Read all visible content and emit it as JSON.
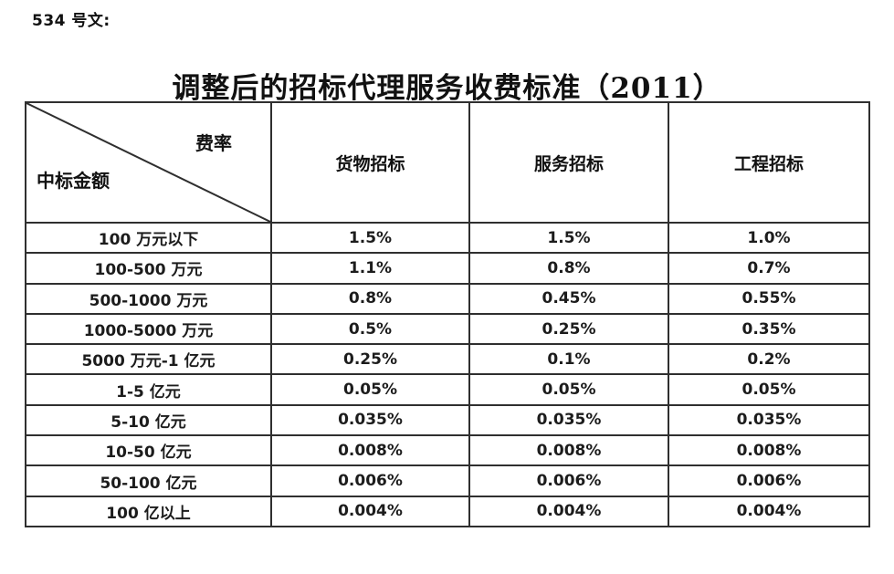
{
  "page": {
    "doc_label": "534 号文:",
    "title": "调整后的招标代理服务收费标准（2011）"
  },
  "colors": {
    "background": "#ffffff",
    "text": "#111111",
    "table_border": "#2f2f2f"
  },
  "table": {
    "corner": {
      "top_right_label": "费率",
      "bottom_left_label": "中标金额"
    },
    "columns": [
      "货物招标",
      "服务招标",
      "工程招标"
    ],
    "rows": [
      {
        "amount": "100 万元以下",
        "values": [
          "1.5%",
          "1.5%",
          "1.0%"
        ]
      },
      {
        "amount": "100-500 万元",
        "values": [
          "1.1%",
          "0.8%",
          "0.7%"
        ]
      },
      {
        "amount": "500-1000 万元",
        "values": [
          "0.8%",
          "0.45%",
          "0.55%"
        ]
      },
      {
        "amount": "1000-5000 万元",
        "values": [
          "0.5%",
          "0.25%",
          "0.35%"
        ]
      },
      {
        "amount": "5000 万元-1 亿元",
        "values": [
          "0.25%",
          "0.1%",
          "0.2%"
        ]
      },
      {
        "amount": "1-5 亿元",
        "values": [
          "0.05%",
          "0.05%",
          "0.05%"
        ]
      },
      {
        "amount": "5-10 亿元",
        "values": [
          "0.035%",
          "0.035%",
          "0.035%"
        ]
      },
      {
        "amount": "10-50 亿元",
        "values": [
          "0.008%",
          "0.008%",
          "0.008%"
        ]
      },
      {
        "amount": "50-100 亿元",
        "values": [
          "0.006%",
          "0.006%",
          "0.006%"
        ]
      },
      {
        "amount": "100 亿以上",
        "values": [
          "0.004%",
          "0.004%",
          "0.004%"
        ]
      }
    ]
  }
}
